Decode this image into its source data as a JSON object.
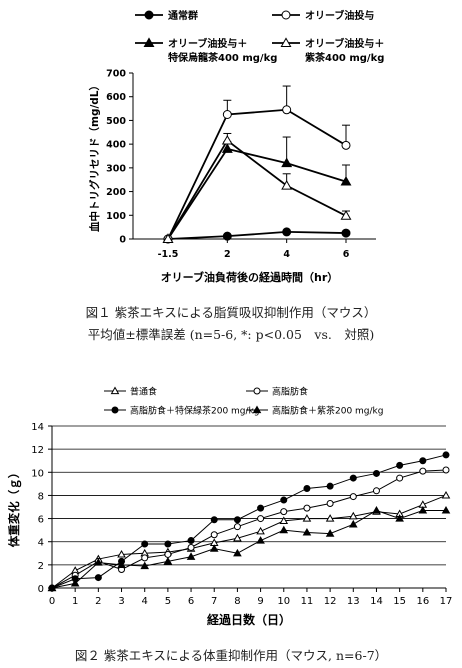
{
  "figure1": {
    "caption_line1": "図１ 紫茶エキスによる脂質吸収抑制作用（マウス）",
    "caption_line2": "平均値±標準誤差 (n=5-6, *: p<0.05　vs.　対照)"
  },
  "figure2": {
    "caption": "図２ 紫茶エキスによる体重抑制作用（マウス, n=6-7）"
  },
  "chart_data": [
    {
      "type": "line",
      "title": "",
      "xlabel": "オリーブ油負荷後の経過時間（hr）",
      "ylabel": "血中トリグリセリド（mg/dL）",
      "categories": [
        "-1.5",
        "2",
        "4",
        "6"
      ],
      "ylim": [
        0,
        700
      ],
      "yticks": [
        "0",
        "100",
        "200",
        "300",
        "400",
        "500",
        "600",
        "700"
      ],
      "grid": false,
      "legend_position": "top",
      "series": [
        {
          "name": "通常群",
          "marker": "filled-circle",
          "values": [
            0,
            12,
            30,
            25
          ],
          "errors": [
            0,
            0,
            0,
            0
          ]
        },
        {
          "name": "オリーブ油投与",
          "marker": "open-circle",
          "values": [
            0,
            525,
            545,
            395
          ],
          "errors": [
            0,
            60,
            100,
            85
          ]
        },
        {
          "name": "オリーブ油投与＋\n特保烏龍茶400 mg/kg",
          "marker": "filled-triangle",
          "values": [
            0,
            380,
            320,
            242
          ],
          "errors": [
            0,
            30,
            110,
            70
          ]
        },
        {
          "name": "オリーブ油投与＋\n紫茶400 mg/kg",
          "marker": "open-triangle",
          "values": [
            0,
            415,
            225,
            98
          ],
          "errors": [
            0,
            30,
            50,
            20
          ]
        }
      ]
    },
    {
      "type": "line",
      "title": "",
      "xlabel": "経過日数（日）",
      "ylabel": "体重変化（ｇ）",
      "x": [
        0,
        1,
        2,
        3,
        4,
        5,
        6,
        7,
        8,
        9,
        10,
        11,
        12,
        13,
        14,
        15,
        16,
        17
      ],
      "xticks": [
        "0",
        "1",
        "2",
        "3",
        "4",
        "5",
        "6",
        "7",
        "8",
        "9",
        "10",
        "11",
        "12",
        "13",
        "14",
        "15",
        "16",
        "17"
      ],
      "ylim": [
        0,
        14
      ],
      "yticks": [
        "0",
        "2",
        "4",
        "6",
        "8",
        "10",
        "12",
        "14"
      ],
      "grid": true,
      "legend_position": "top",
      "series": [
        {
          "name": "普通食",
          "marker": "open-triangle",
          "values": [
            0,
            1.5,
            2.5,
            2.9,
            3.0,
            3.1,
            3.4,
            3.9,
            4.3,
            4.9,
            5.8,
            6.0,
            6.0,
            6.2,
            6.6,
            6.4,
            7.2,
            8.0
          ]
        },
        {
          "name": "高脂肪食",
          "marker": "open-circle",
          "values": [
            0,
            1.1,
            2.3,
            1.6,
            2.6,
            2.9,
            3.5,
            4.6,
            5.3,
            6.0,
            6.6,
            6.9,
            7.3,
            7.9,
            8.4,
            9.5,
            10.1,
            10.2
          ]
        },
        {
          "name": "高脂肪食＋特保緑茶200 mg/kg",
          "marker": "filled-circle",
          "values": [
            0,
            0.8,
            0.9,
            2.3,
            3.8,
            3.8,
            4.1,
            5.9,
            5.9,
            6.9,
            7.6,
            8.6,
            8.8,
            9.5,
            9.9,
            10.6,
            11.0,
            11.5
          ]
        },
        {
          "name": "高脂肪食＋紫茶200 mg/kg",
          "marker": "filled-triangle",
          "values": [
            0,
            0.4,
            2.2,
            2.0,
            1.9,
            2.3,
            2.7,
            3.4,
            3.0,
            4.1,
            5.0,
            4.8,
            4.7,
            5.5,
            6.7,
            6.0,
            6.7,
            6.7
          ]
        }
      ]
    }
  ]
}
